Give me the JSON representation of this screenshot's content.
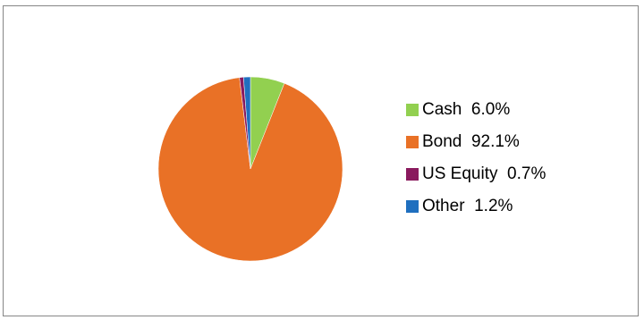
{
  "chart_data": {
    "type": "pie",
    "title": "",
    "legend_position": "right",
    "slices": [
      {
        "label": "Cash",
        "value": 6.0,
        "value_label": "6.0%",
        "color": "#92D050"
      },
      {
        "label": "Bond",
        "value": 92.1,
        "value_label": "92.1%",
        "color": "#E97126"
      },
      {
        "label": "US Equity",
        "value": 0.7,
        "value_label": "0.7%",
        "color": "#8A1A5E"
      },
      {
        "label": "Other",
        "value": 1.2,
        "value_label": "1.2%",
        "color": "#1F6FBF"
      }
    ]
  }
}
